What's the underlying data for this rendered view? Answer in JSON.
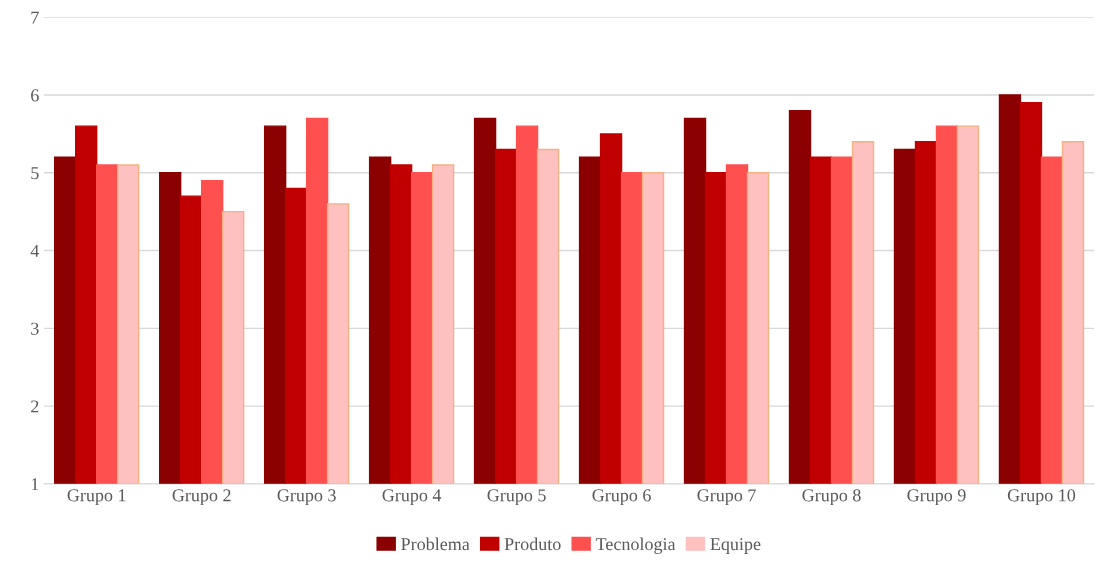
{
  "chart_data": {
    "type": "bar",
    "categories": [
      "Grupo 1",
      "Grupo 2",
      "Grupo 3",
      "Grupo 4",
      "Grupo 5",
      "Grupo 6",
      "Grupo 7",
      "Grupo 8",
      "Grupo 9",
      "Grupo 10"
    ],
    "series": [
      {
        "name": "Problema",
        "color": "#8b0000",
        "values": [
          5.2,
          5.0,
          5.6,
          5.2,
          5.7,
          5.2,
          5.7,
          5.8,
          5.3,
          6.0
        ]
      },
      {
        "name": "Produto",
        "color": "#c00000",
        "values": [
          5.6,
          4.7,
          4.8,
          5.1,
          5.3,
          5.5,
          5.0,
          5.2,
          5.4,
          5.9
        ]
      },
      {
        "name": "Tecnologia",
        "color": "#ff5050",
        "values": [
          5.1,
          4.9,
          5.7,
          5.0,
          5.6,
          5.0,
          5.1,
          5.2,
          5.6,
          5.2
        ]
      },
      {
        "name": "Equipe",
        "color": "#ffc0c0",
        "values": [
          5.1,
          4.5,
          4.6,
          5.1,
          5.3,
          5.0,
          5.0,
          5.4,
          5.6,
          5.4
        ]
      }
    ],
    "ylim": [
      1,
      7
    ],
    "yticks": [
      1,
      2,
      3,
      4,
      5,
      6,
      7
    ],
    "grid": "y",
    "legend": "bottom"
  }
}
